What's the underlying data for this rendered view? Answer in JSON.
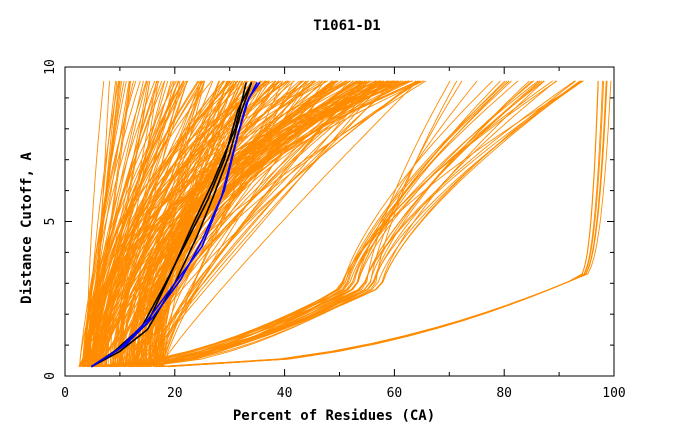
{
  "chart_data": {
    "type": "line",
    "title": "T1061-D1",
    "xlabel": "Percent of Residues (CA)",
    "ylabel": "Distance Cutoff, A",
    "xlim": [
      0,
      100
    ],
    "ylim": [
      0,
      10
    ],
    "x_ticks": [
      "0",
      "20",
      "40",
      "60",
      "80",
      "100"
    ],
    "y_ticks": [
      "0",
      "5",
      "10"
    ],
    "grid": false,
    "colors": {
      "models": "#ff8c00",
      "highlight_black": "#000000",
      "highlight_blue": "#0000ff"
    },
    "series": [
      {
        "color": "#000000",
        "points": [
          [
            4.8,
            0.3
          ],
          [
            10,
            0.8
          ],
          [
            15,
            1.5
          ],
          [
            20,
            3.0
          ],
          [
            24,
            4.5
          ],
          [
            27,
            5.8
          ],
          [
            30,
            7.2
          ],
          [
            32,
            8.5
          ],
          [
            34,
            9.5
          ]
        ]
      },
      {
        "color": "#000000",
        "points": [
          [
            4.8,
            0.3
          ],
          [
            10,
            0.9
          ],
          [
            15,
            1.7
          ],
          [
            19,
            3.2
          ],
          [
            23,
            4.8
          ],
          [
            27,
            6.3
          ],
          [
            31,
            8.0
          ],
          [
            33,
            9.5
          ]
        ]
      },
      {
        "color": "#000000",
        "points": [
          [
            4.8,
            0.3
          ],
          [
            9,
            0.8
          ],
          [
            14,
            1.6
          ],
          [
            18,
            2.9
          ],
          [
            22,
            4.3
          ],
          [
            26,
            5.7
          ],
          [
            29,
            7.0
          ],
          [
            31.5,
            8.6
          ],
          [
            34,
            9.5
          ]
        ]
      },
      {
        "color": "#0000ff",
        "points": [
          [
            4.8,
            0.3
          ],
          [
            10,
            0.9
          ],
          [
            15,
            1.8
          ],
          [
            20,
            3.0
          ],
          [
            25,
            4.2
          ],
          [
            28.5,
            5.8
          ],
          [
            31,
            7.5
          ],
          [
            33,
            8.8
          ],
          [
            35,
            9.5
          ]
        ]
      },
      {
        "color": "#0000ff",
        "points": [
          [
            4.8,
            0.3
          ],
          [
            11,
            1.0
          ],
          [
            16,
            1.9
          ],
          [
            21,
            3.1
          ],
          [
            25,
            4.4
          ],
          [
            29,
            6.0
          ],
          [
            31.5,
            7.8
          ],
          [
            33.5,
            9.0
          ],
          [
            35.5,
            9.5
          ]
        ]
      }
    ]
  }
}
